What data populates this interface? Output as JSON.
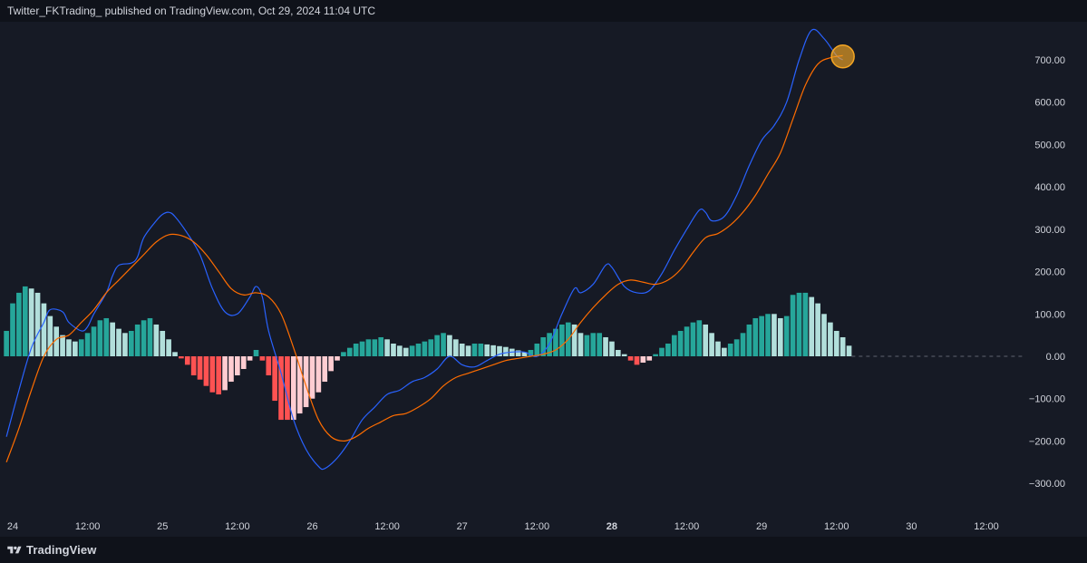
{
  "header": {
    "publish_text": "Twitter_FKTrading_ published on TradingView.com, Oct 29, 2024 11:04 UTC"
  },
  "footer": {
    "brand": "TradingView"
  },
  "colors": {
    "background": "#161a25",
    "macd_line": "#2962ff",
    "signal_line": "#ff6d00",
    "hist_pos_strong": "#26a69a",
    "hist_pos_weak": "#b2dfdb",
    "hist_neg_strong": "#ff5252",
    "hist_neg_weak": "#ffcdd2",
    "highlight_circle": "#f5a623"
  },
  "chart_data": {
    "type": "line",
    "title": "",
    "y_ticks": [
      "700.00",
      "600.00",
      "500.00",
      "400.00",
      "300.00",
      "200.00",
      "100.00",
      "0.00",
      "−100.00",
      "−200.00",
      "−300.00"
    ],
    "y_tick_values": [
      700,
      600,
      500,
      400,
      300,
      200,
      100,
      0,
      -100,
      -200,
      -300
    ],
    "ylim": [
      -375,
      790
    ],
    "x_ticks": [
      {
        "label": "24",
        "t": 0,
        "bold": false
      },
      {
        "label": "12:00",
        "t": 12,
        "bold": false
      },
      {
        "label": "25",
        "t": 24,
        "bold": false
      },
      {
        "label": "12:00",
        "t": 36,
        "bold": false
      },
      {
        "label": "26",
        "t": 48,
        "bold": false
      },
      {
        "label": "12:00",
        "t": 60,
        "bold": false
      },
      {
        "label": "27",
        "t": 72,
        "bold": false
      },
      {
        "label": "12:00",
        "t": 84,
        "bold": false
      },
      {
        "label": "28",
        "t": 96,
        "bold": true
      },
      {
        "label": "12:00",
        "t": 108,
        "bold": false
      },
      {
        "label": "29",
        "t": 120,
        "bold": false
      },
      {
        "label": "12:00",
        "t": 132,
        "bold": false
      },
      {
        "label": "30",
        "t": 144,
        "bold": false
      },
      {
        "label": "12:00",
        "t": 156,
        "bold": false
      }
    ],
    "xlim": [
      -1,
      163
    ],
    "series": [
      {
        "key": "macd",
        "points": [
          [
            -1,
            -190
          ],
          [
            1,
            -80
          ],
          [
            3,
            20
          ],
          [
            5,
            80
          ],
          [
            6,
            110
          ],
          [
            8,
            105
          ],
          [
            9,
            80
          ],
          [
            11,
            60
          ],
          [
            12,
            70
          ],
          [
            13,
            100
          ],
          [
            15,
            150
          ],
          [
            16,
            190
          ],
          [
            17,
            215
          ],
          [
            19,
            220
          ],
          [
            20,
            235
          ],
          [
            21,
            280
          ],
          [
            23,
            320
          ],
          [
            24,
            335
          ],
          [
            25,
            340
          ],
          [
            26,
            330
          ],
          [
            28,
            290
          ],
          [
            30,
            240
          ],
          [
            32,
            160
          ],
          [
            34,
            105
          ],
          [
            36,
            100
          ],
          [
            38,
            140
          ],
          [
            39,
            165
          ],
          [
            40,
            140
          ],
          [
            41,
            60
          ],
          [
            43,
            -40
          ],
          [
            45,
            -150
          ],
          [
            47,
            -220
          ],
          [
            49,
            -260
          ],
          [
            50,
            -265
          ],
          [
            52,
            -240
          ],
          [
            54,
            -200
          ],
          [
            56,
            -150
          ],
          [
            58,
            -120
          ],
          [
            60,
            -90
          ],
          [
            62,
            -80
          ],
          [
            64,
            -60
          ],
          [
            66,
            -50
          ],
          [
            68,
            -30
          ],
          [
            70,
            0
          ],
          [
            72,
            -20
          ],
          [
            74,
            -25
          ],
          [
            76,
            -10
          ],
          [
            78,
            5
          ],
          [
            80,
            10
          ],
          [
            82,
            10
          ],
          [
            84,
            0
          ],
          [
            86,
            30
          ],
          [
            88,
            100
          ],
          [
            90,
            160
          ],
          [
            91,
            150
          ],
          [
            93,
            170
          ],
          [
            95,
            215
          ],
          [
            96,
            210
          ],
          [
            98,
            165
          ],
          [
            100,
            150
          ],
          [
            102,
            155
          ],
          [
            104,
            195
          ],
          [
            106,
            250
          ],
          [
            108,
            300
          ],
          [
            110,
            345
          ],
          [
            111,
            340
          ],
          [
            112,
            320
          ],
          [
            114,
            330
          ],
          [
            116,
            380
          ],
          [
            118,
            450
          ],
          [
            120,
            510
          ],
          [
            122,
            545
          ],
          [
            124,
            600
          ],
          [
            126,
            700
          ],
          [
            128,
            770
          ],
          [
            130,
            750
          ],
          [
            132,
            710
          ],
          [
            133,
            700
          ]
        ]
      },
      {
        "key": "signal",
        "points": [
          [
            -1,
            -250
          ],
          [
            1,
            -170
          ],
          [
            3,
            -80
          ],
          [
            5,
            0
          ],
          [
            7,
            40
          ],
          [
            9,
            50
          ],
          [
            11,
            80
          ],
          [
            13,
            110
          ],
          [
            15,
            150
          ],
          [
            17,
            180
          ],
          [
            19,
            210
          ],
          [
            21,
            240
          ],
          [
            23,
            270
          ],
          [
            25,
            287
          ],
          [
            27,
            285
          ],
          [
            29,
            270
          ],
          [
            31,
            240
          ],
          [
            33,
            200
          ],
          [
            35,
            160
          ],
          [
            37,
            145
          ],
          [
            39,
            150
          ],
          [
            41,
            140
          ],
          [
            43,
            100
          ],
          [
            45,
            20
          ],
          [
            47,
            -70
          ],
          [
            49,
            -150
          ],
          [
            51,
            -190
          ],
          [
            53,
            -200
          ],
          [
            55,
            -190
          ],
          [
            57,
            -170
          ],
          [
            59,
            -155
          ],
          [
            61,
            -140
          ],
          [
            63,
            -135
          ],
          [
            65,
            -120
          ],
          [
            67,
            -100
          ],
          [
            69,
            -70
          ],
          [
            71,
            -50
          ],
          [
            73,
            -40
          ],
          [
            75,
            -30
          ],
          [
            77,
            -20
          ],
          [
            79,
            -10
          ],
          [
            81,
            -5
          ],
          [
            83,
            0
          ],
          [
            85,
            5
          ],
          [
            87,
            15
          ],
          [
            89,
            40
          ],
          [
            91,
            80
          ],
          [
            93,
            115
          ],
          [
            95,
            145
          ],
          [
            97,
            170
          ],
          [
            99,
            180
          ],
          [
            101,
            175
          ],
          [
            103,
            170
          ],
          [
            105,
            180
          ],
          [
            107,
            205
          ],
          [
            109,
            245
          ],
          [
            111,
            280
          ],
          [
            113,
            290
          ],
          [
            115,
            310
          ],
          [
            117,
            340
          ],
          [
            119,
            380
          ],
          [
            121,
            430
          ],
          [
            123,
            480
          ],
          [
            125,
            560
          ],
          [
            127,
            640
          ],
          [
            129,
            690
          ],
          [
            131,
            705
          ],
          [
            133,
            710
          ]
        ]
      }
    ],
    "histogram": [
      [
        -1,
        60,
        "pos_strong"
      ],
      [
        0,
        125,
        "pos_strong"
      ],
      [
        1,
        150,
        "pos_strong"
      ],
      [
        2,
        165,
        "pos_strong"
      ],
      [
        3,
        160,
        "pos_weak"
      ],
      [
        4,
        150,
        "pos_weak"
      ],
      [
        5,
        125,
        "pos_weak"
      ],
      [
        6,
        95,
        "pos_weak"
      ],
      [
        7,
        70,
        "pos_weak"
      ],
      [
        8,
        50,
        "pos_weak"
      ],
      [
        9,
        40,
        "pos_weak"
      ],
      [
        10,
        35,
        "pos_weak"
      ],
      [
        11,
        40,
        "pos_strong"
      ],
      [
        12,
        55,
        "pos_strong"
      ],
      [
        13,
        70,
        "pos_strong"
      ],
      [
        14,
        85,
        "pos_strong"
      ],
      [
        15,
        90,
        "pos_strong"
      ],
      [
        16,
        80,
        "pos_weak"
      ],
      [
        17,
        65,
        "pos_weak"
      ],
      [
        18,
        55,
        "pos_weak"
      ],
      [
        19,
        60,
        "pos_strong"
      ],
      [
        20,
        75,
        "pos_strong"
      ],
      [
        21,
        85,
        "pos_strong"
      ],
      [
        22,
        90,
        "pos_strong"
      ],
      [
        23,
        75,
        "pos_weak"
      ],
      [
        24,
        60,
        "pos_weak"
      ],
      [
        25,
        40,
        "pos_weak"
      ],
      [
        26,
        10,
        "pos_weak"
      ],
      [
        27,
        -5,
        "neg_strong"
      ],
      [
        28,
        -20,
        "neg_strong"
      ],
      [
        29,
        -45,
        "neg_strong"
      ],
      [
        30,
        -55,
        "neg_strong"
      ],
      [
        31,
        -70,
        "neg_strong"
      ],
      [
        32,
        -85,
        "neg_strong"
      ],
      [
        33,
        -90,
        "neg_strong"
      ],
      [
        34,
        -80,
        "neg_weak"
      ],
      [
        35,
        -60,
        "neg_weak"
      ],
      [
        36,
        -45,
        "neg_weak"
      ],
      [
        37,
        -30,
        "neg_weak"
      ],
      [
        38,
        -10,
        "neg_weak"
      ],
      [
        39,
        15,
        "pos_strong"
      ],
      [
        40,
        -10,
        "neg_strong"
      ],
      [
        41,
        -45,
        "neg_strong"
      ],
      [
        42,
        -105,
        "neg_strong"
      ],
      [
        43,
        -150,
        "neg_strong"
      ],
      [
        44,
        -150,
        "neg_strong"
      ],
      [
        45,
        -150,
        "neg_weak"
      ],
      [
        46,
        -135,
        "neg_weak"
      ],
      [
        47,
        -120,
        "neg_weak"
      ],
      [
        48,
        -100,
        "neg_weak"
      ],
      [
        49,
        -85,
        "neg_weak"
      ],
      [
        50,
        -60,
        "neg_weak"
      ],
      [
        51,
        -35,
        "neg_weak"
      ],
      [
        52,
        -10,
        "neg_weak"
      ],
      [
        53,
        10,
        "pos_strong"
      ],
      [
        54,
        20,
        "pos_strong"
      ],
      [
        55,
        30,
        "pos_strong"
      ],
      [
        56,
        35,
        "pos_strong"
      ],
      [
        57,
        40,
        "pos_strong"
      ],
      [
        58,
        40,
        "pos_strong"
      ],
      [
        59,
        45,
        "pos_strong"
      ],
      [
        60,
        40,
        "pos_weak"
      ],
      [
        61,
        30,
        "pos_weak"
      ],
      [
        62,
        25,
        "pos_weak"
      ],
      [
        63,
        20,
        "pos_weak"
      ],
      [
        64,
        25,
        "pos_strong"
      ],
      [
        65,
        30,
        "pos_strong"
      ],
      [
        66,
        35,
        "pos_strong"
      ],
      [
        67,
        40,
        "pos_strong"
      ],
      [
        68,
        50,
        "pos_strong"
      ],
      [
        69,
        55,
        "pos_strong"
      ],
      [
        70,
        50,
        "pos_weak"
      ],
      [
        71,
        40,
        "pos_weak"
      ],
      [
        72,
        30,
        "pos_weak"
      ],
      [
        73,
        25,
        "pos_weak"
      ],
      [
        74,
        30,
        "pos_strong"
      ],
      [
        75,
        30,
        "pos_strong"
      ],
      [
        76,
        28,
        "pos_weak"
      ],
      [
        77,
        26,
        "pos_weak"
      ],
      [
        78,
        24,
        "pos_weak"
      ],
      [
        79,
        22,
        "pos_weak"
      ],
      [
        80,
        18,
        "pos_weak"
      ],
      [
        81,
        14,
        "pos_weak"
      ],
      [
        82,
        10,
        "pos_weak"
      ],
      [
        83,
        15,
        "pos_strong"
      ],
      [
        84,
        30,
        "pos_strong"
      ],
      [
        85,
        45,
        "pos_strong"
      ],
      [
        86,
        55,
        "pos_strong"
      ],
      [
        87,
        65,
        "pos_strong"
      ],
      [
        88,
        75,
        "pos_strong"
      ],
      [
        89,
        80,
        "pos_strong"
      ],
      [
        90,
        75,
        "pos_weak"
      ],
      [
        91,
        55,
        "pos_weak"
      ],
      [
        92,
        50,
        "pos_strong"
      ],
      [
        93,
        55,
        "pos_strong"
      ],
      [
        94,
        55,
        "pos_strong"
      ],
      [
        95,
        45,
        "pos_weak"
      ],
      [
        96,
        35,
        "pos_weak"
      ],
      [
        97,
        15,
        "pos_weak"
      ],
      [
        98,
        5,
        "pos_weak"
      ],
      [
        99,
        -10,
        "neg_strong"
      ],
      [
        100,
        -20,
        "neg_strong"
      ],
      [
        101,
        -15,
        "neg_weak"
      ],
      [
        102,
        -10,
        "neg_weak"
      ],
      [
        103,
        5,
        "pos_strong"
      ],
      [
        104,
        20,
        "pos_strong"
      ],
      [
        105,
        30,
        "pos_strong"
      ],
      [
        106,
        50,
        "pos_strong"
      ],
      [
        107,
        60,
        "pos_strong"
      ],
      [
        108,
        70,
        "pos_strong"
      ],
      [
        109,
        80,
        "pos_strong"
      ],
      [
        110,
        85,
        "pos_strong"
      ],
      [
        111,
        75,
        "pos_weak"
      ],
      [
        112,
        55,
        "pos_weak"
      ],
      [
        113,
        35,
        "pos_weak"
      ],
      [
        114,
        20,
        "pos_weak"
      ],
      [
        115,
        30,
        "pos_strong"
      ],
      [
        116,
        40,
        "pos_strong"
      ],
      [
        117,
        55,
        "pos_strong"
      ],
      [
        118,
        75,
        "pos_strong"
      ],
      [
        119,
        90,
        "pos_strong"
      ],
      [
        120,
        95,
        "pos_strong"
      ],
      [
        121,
        100,
        "pos_strong"
      ],
      [
        122,
        100,
        "pos_weak"
      ],
      [
        123,
        90,
        "pos_weak"
      ],
      [
        124,
        95,
        "pos_strong"
      ],
      [
        125,
        145,
        "pos_strong"
      ],
      [
        126,
        150,
        "pos_strong"
      ],
      [
        127,
        150,
        "pos_strong"
      ],
      [
        128,
        140,
        "pos_weak"
      ],
      [
        129,
        125,
        "pos_weak"
      ],
      [
        130,
        100,
        "pos_weak"
      ],
      [
        131,
        80,
        "pos_weak"
      ],
      [
        132,
        60,
        "pos_weak"
      ],
      [
        133,
        45,
        "pos_weak"
      ],
      [
        134,
        25,
        "pos_weak"
      ]
    ],
    "highlight": {
      "t": 133,
      "value": 708
    },
    "zero_line": 0,
    "grid": false
  }
}
